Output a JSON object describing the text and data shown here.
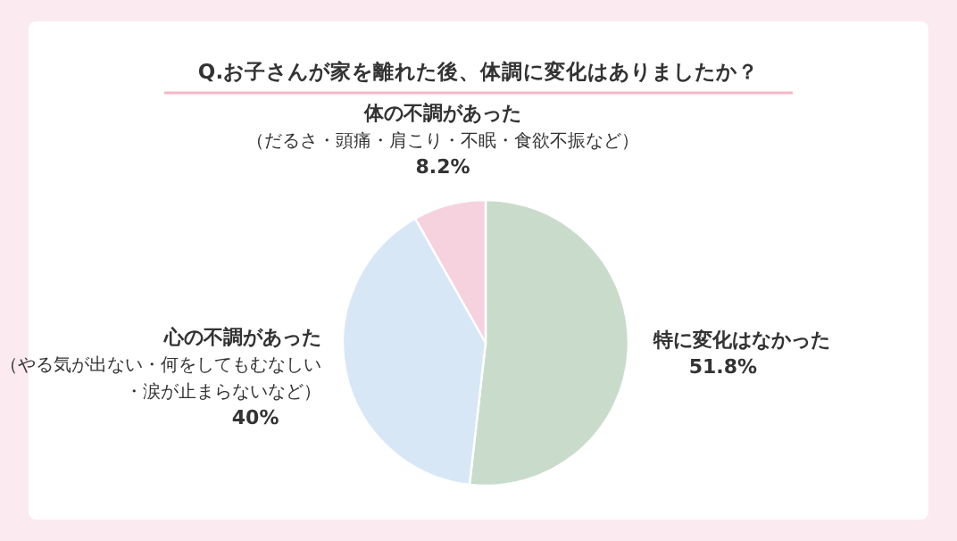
{
  "chart_data": {
    "type": "pie",
    "title": "Q.お子さんが家を離れた後、体調に変化はありましたか？",
    "categories": [
      "特に変化はなかった",
      "心の不調があった（やる気が出ない・何をしてもむなしい・涙が止まらないなど）",
      "体の不調があった（だるさ・頭痛・肩こり・不眠・食欲不振など）"
    ],
    "values": [
      51.8,
      40,
      8.2
    ],
    "colors": [
      "#c9dccb",
      "#d7e7f6",
      "#f6d2de"
    ],
    "value_labels": [
      "51.8%",
      "40%",
      "8.2%"
    ]
  }
}
